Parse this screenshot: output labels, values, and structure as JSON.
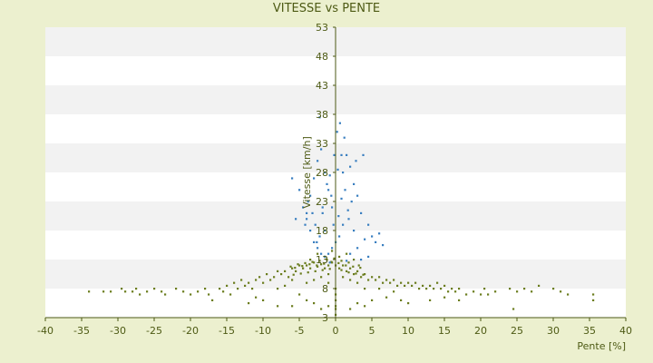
{
  "chart_data": {
    "type": "scatter",
    "title": "VITESSE vs PENTE",
    "xlabel": "Pente [%]",
    "ylabel": "Vitesse [km/h]",
    "xlim": [
      -40,
      40
    ],
    "ylim": [
      3,
      53
    ],
    "x_ticks": [
      -40,
      -35,
      -30,
      -25,
      -20,
      -15,
      -10,
      -5,
      0,
      5,
      10,
      15,
      20,
      25,
      30,
      35,
      40
    ],
    "y_ticks": [
      3,
      8,
      13,
      18,
      23,
      28,
      33,
      38,
      43,
      48,
      53
    ],
    "grid": "horizontal bands",
    "legend": "none",
    "colors": {
      "background": "#ecf0cf",
      "plot_bg": "#ffffff",
      "band": "#f2f2f2",
      "axis": "#4d5a14",
      "olive_series": "#6b7d1e",
      "blue_series": "#3a7fc0"
    },
    "series": [
      {
        "color": "#3a7fc0",
        "points": [
          [
            -3.0,
            27
          ],
          [
            -2.5,
            30
          ],
          [
            -2.0,
            32
          ],
          [
            -1.5,
            28
          ],
          [
            -3.5,
            24
          ],
          [
            -4.0,
            21
          ],
          [
            -5.5,
            20
          ],
          [
            -6.0,
            27
          ],
          [
            -2.2,
            37.5
          ],
          [
            -1.0,
            25
          ],
          [
            -0.5,
            22
          ],
          [
            0.2,
            35
          ],
          [
            0.8,
            31
          ],
          [
            1.2,
            34
          ],
          [
            1.5,
            31
          ],
          [
            2.0,
            29
          ],
          [
            2.5,
            26
          ],
          [
            3.0,
            24
          ],
          [
            1.8,
            20
          ],
          [
            1.0,
            19
          ],
          [
            0.5,
            17
          ],
          [
            0.0,
            16
          ],
          [
            -0.5,
            15
          ],
          [
            -1.0,
            14
          ],
          [
            -1.5,
            13.5
          ],
          [
            -2.0,
            14
          ],
          [
            -2.5,
            15
          ],
          [
            -3.0,
            16
          ],
          [
            -3.5,
            18
          ],
          [
            -4.0,
            20
          ],
          [
            -4.5,
            22
          ],
          [
            -1.2,
            26
          ],
          [
            -0.8,
            27.5
          ],
          [
            0.3,
            28.5
          ],
          [
            -1.8,
            22
          ],
          [
            -2.8,
            19
          ],
          [
            0.8,
            23.5
          ],
          [
            1.3,
            25
          ],
          [
            2.2,
            23
          ],
          [
            3.5,
            21
          ],
          [
            4.5,
            19
          ],
          [
            5.0,
            17
          ],
          [
            5.5,
            16
          ],
          [
            6.0,
            17.5
          ],
          [
            6.5,
            15.5
          ],
          [
            4.0,
            16.5
          ],
          [
            3.0,
            15
          ],
          [
            2.0,
            14
          ],
          [
            -0.3,
            19
          ],
          [
            0.4,
            20.5
          ],
          [
            -1.5,
            18
          ],
          [
            -2.2,
            17
          ],
          [
            -3.2,
            21
          ],
          [
            -3.8,
            23
          ],
          [
            -5.0,
            25
          ],
          [
            3.8,
            31
          ],
          [
            2.8,
            30
          ],
          [
            1.0,
            28
          ],
          [
            -0.2,
            31
          ],
          [
            0.6,
            36.5
          ],
          [
            2.5,
            18
          ],
          [
            4.5,
            13.5
          ],
          [
            3.5,
            13
          ],
          [
            1.5,
            12.8
          ],
          [
            -0.8,
            12.5
          ],
          [
            -1.8,
            21
          ],
          [
            -0.6,
            24
          ],
          [
            1.7,
            21.5
          ],
          [
            -4.2,
            19
          ],
          [
            -2.6,
            16
          ]
        ]
      },
      {
        "color": "#6b7d1e",
        "points": [
          [
            -34,
            7.5
          ],
          [
            -32,
            7.5
          ],
          [
            -31,
            7.5
          ],
          [
            -29.5,
            8
          ],
          [
            -29,
            7.5
          ],
          [
            -28,
            7.5
          ],
          [
            -27.5,
            8
          ],
          [
            -27,
            7
          ],
          [
            -26,
            7.5
          ],
          [
            -25,
            8
          ],
          [
            -24,
            7.5
          ],
          [
            -23.5,
            7
          ],
          [
            -22,
            8
          ],
          [
            -21,
            7.5
          ],
          [
            -20,
            7
          ],
          [
            -19,
            7.5
          ],
          [
            -18,
            8
          ],
          [
            -17.5,
            7
          ],
          [
            -17,
            6
          ],
          [
            -16,
            8
          ],
          [
            -15.5,
            7.5
          ],
          [
            -15,
            8.5
          ],
          [
            -14.5,
            7
          ],
          [
            -14,
            9
          ],
          [
            -13.5,
            8
          ],
          [
            -13,
            9.5
          ],
          [
            -12.5,
            8.5
          ],
          [
            -12,
            9
          ],
          [
            -11.5,
            8
          ],
          [
            -11,
            9.5
          ],
          [
            -10.5,
            10
          ],
          [
            -10,
            9
          ],
          [
            -9.5,
            10.5
          ],
          [
            -9,
            9.5
          ],
          [
            -8.5,
            10
          ],
          [
            -8,
            11
          ],
          [
            -7.5,
            10.5
          ],
          [
            -7,
            11
          ],
          [
            -6.5,
            10
          ],
          [
            -6,
            11.5
          ],
          [
            -5.5,
            11
          ],
          [
            -5,
            12
          ],
          [
            -4.5,
            11.5
          ],
          [
            -4,
            12
          ],
          [
            -3.5,
            11.5
          ],
          [
            -3,
            12.5
          ],
          [
            -2.5,
            11.8
          ],
          [
            -2,
            12.2
          ],
          [
            -1.5,
            11.5
          ],
          [
            -1,
            12
          ],
          [
            -0.5,
            12.5
          ],
          [
            0,
            12
          ],
          [
            0.5,
            11.5
          ],
          [
            1,
            12
          ],
          [
            1.5,
            11
          ],
          [
            2,
            11.5
          ],
          [
            2.5,
            10.5
          ],
          [
            3,
            11
          ],
          [
            3.5,
            10
          ],
          [
            4,
            10.5
          ],
          [
            4.5,
            9.5
          ],
          [
            5,
            10
          ],
          [
            5.5,
            9.5
          ],
          [
            6,
            10
          ],
          [
            6.5,
            9
          ],
          [
            7,
            9.5
          ],
          [
            7.5,
            9
          ],
          [
            8,
            9.5
          ],
          [
            8.5,
            8.5
          ],
          [
            9,
            9
          ],
          [
            9.5,
            8.5
          ],
          [
            10,
            9
          ],
          [
            10.5,
            8.5
          ],
          [
            11,
            9
          ],
          [
            11.5,
            8
          ],
          [
            12,
            8.5
          ],
          [
            12.5,
            8
          ],
          [
            13,
            8.5
          ],
          [
            13.5,
            8
          ],
          [
            14,
            9
          ],
          [
            14.5,
            8
          ],
          [
            15,
            8.5
          ],
          [
            15.5,
            7.5
          ],
          [
            16,
            8
          ],
          [
            16.5,
            7.5
          ],
          [
            17,
            8
          ],
          [
            18,
            7
          ],
          [
            19,
            7.5
          ],
          [
            20,
            7
          ],
          [
            20.5,
            8
          ],
          [
            21,
            7
          ],
          [
            22,
            7.5
          ],
          [
            24,
            8
          ],
          [
            25,
            7.5
          ],
          [
            26,
            8
          ],
          [
            27,
            7.5
          ],
          [
            28,
            8.5
          ],
          [
            30,
            8
          ],
          [
            31,
            7.5
          ],
          [
            32,
            7
          ],
          [
            35.5,
            6
          ],
          [
            35.5,
            7
          ],
          [
            24.5,
            4.5
          ],
          [
            -6,
            5
          ],
          [
            -8,
            5
          ],
          [
            -3,
            5.5
          ],
          [
            -2,
            4.5
          ],
          [
            -1,
            5
          ],
          [
            0,
            4.5
          ],
          [
            0,
            3.5
          ],
          [
            0,
            5
          ],
          [
            0,
            6
          ],
          [
            0,
            7
          ],
          [
            0,
            8
          ],
          [
            2,
            4.5
          ],
          [
            3,
            5.5
          ],
          [
            4,
            5
          ],
          [
            5,
            6
          ],
          [
            7,
            6.5
          ],
          [
            9,
            6
          ],
          [
            10,
            5.5
          ],
          [
            13,
            6
          ],
          [
            15,
            6.5
          ],
          [
            17,
            6
          ],
          [
            -10,
            6
          ],
          [
            -11,
            6.5
          ],
          [
            -12,
            5.5
          ],
          [
            -4,
            6
          ],
          [
            -5,
            7
          ],
          [
            -7,
            8.5
          ],
          [
            -2.5,
            14
          ],
          [
            -1.5,
            13.5
          ],
          [
            -0.5,
            14.5
          ],
          [
            0.5,
            13.5
          ],
          [
            1.5,
            14
          ],
          [
            -3.5,
            13
          ],
          [
            2.5,
            13
          ],
          [
            -2,
            10
          ],
          [
            -1,
            10.5
          ],
          [
            1,
            10
          ],
          [
            2,
            9.5
          ],
          [
            3,
            9
          ],
          [
            -3,
            9.5
          ],
          [
            -4,
            9
          ],
          [
            -1,
            9
          ],
          [
            4,
            8
          ],
          [
            -6,
            9.5
          ],
          [
            -8,
            8
          ],
          [
            6,
            8
          ],
          [
            8,
            7.5
          ],
          [
            -2.8,
            11
          ],
          [
            -1.8,
            11.2
          ],
          [
            -0.8,
            11.4
          ],
          [
            0.8,
            11.2
          ],
          [
            1.8,
            10.8
          ],
          [
            2.8,
            10.6
          ],
          [
            3.8,
            10.4
          ],
          [
            -3.8,
            10.8
          ],
          [
            -4.8,
            10.6
          ],
          [
            -5.8,
            10.4
          ],
          [
            -2.2,
            12.8
          ],
          [
            -1.2,
            13
          ],
          [
            -0.2,
            13.2
          ],
          [
            0.8,
            12.8
          ],
          [
            1.8,
            12.5
          ],
          [
            -3.2,
            12.6
          ],
          [
            -4.2,
            12.4
          ],
          [
            -5.2,
            12.2
          ],
          [
            -6.2,
            11.8
          ],
          [
            3.2,
            12
          ],
          [
            -2.6,
            12.0
          ],
          [
            -1.6,
            12.3
          ],
          [
            -0.6,
            12.6
          ],
          [
            0.4,
            12.4
          ],
          [
            1.4,
            12.0
          ],
          [
            2.4,
            11.8
          ],
          [
            -3.6,
            12.2
          ],
          [
            -4.6,
            11.9
          ],
          [
            -5.6,
            11.6
          ],
          [
            3.4,
            11.6
          ]
        ]
      }
    ]
  }
}
